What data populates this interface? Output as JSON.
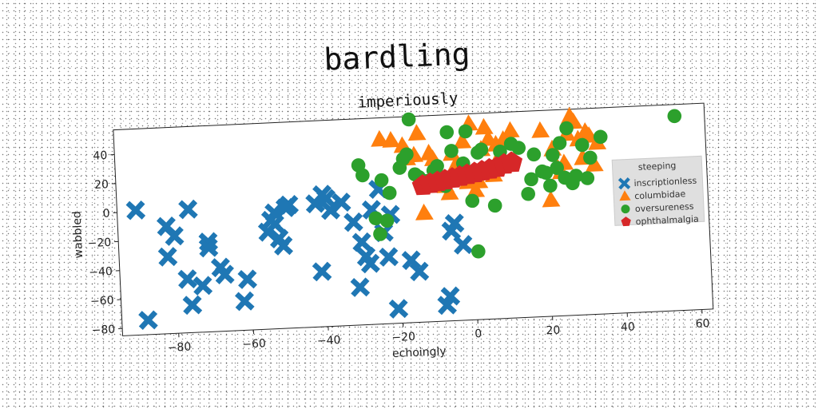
{
  "figure_title": "bardling",
  "chart_data": {
    "type": "scatter",
    "title": "imperiously",
    "xlabel": "echoingly",
    "ylabel": "wabbled",
    "xlim": [
      -95,
      63
    ],
    "ylim": [
      -85,
      57
    ],
    "xticks": [
      -80,
      -60,
      -40,
      -20,
      0,
      20,
      40,
      60
    ],
    "yticks": [
      -80,
      -60,
      -40,
      -20,
      0,
      20,
      40
    ],
    "grid": false,
    "legend": {
      "title": "steeping",
      "placement": "center-right"
    },
    "series": [
      {
        "name": "inscriptionless",
        "marker": "x-filled",
        "color": "#1f77b4",
        "points": [
          [
            -90,
            1
          ],
          [
            -88,
            -75
          ],
          [
            -82,
            -11
          ],
          [
            -82,
            -32
          ],
          [
            -80,
            -18
          ],
          [
            -77,
            -48
          ],
          [
            -76,
            0
          ],
          [
            -76,
            -66
          ],
          [
            -73,
            -53
          ],
          [
            -71,
            -23
          ],
          [
            -71,
            -27
          ],
          [
            -68,
            -41
          ],
          [
            -67,
            -46
          ],
          [
            -62,
            -65
          ],
          [
            -61,
            -50
          ],
          [
            -55,
            -18
          ],
          [
            -54,
            -10
          ],
          [
            -53,
            -5
          ],
          [
            -53,
            -13
          ],
          [
            -52,
            -23
          ],
          [
            -51,
            -28
          ],
          [
            -50,
            -2
          ],
          [
            -49,
            0
          ],
          [
            -42,
            0
          ],
          [
            -41,
            -47
          ],
          [
            -40,
            6
          ],
          [
            -39,
            3
          ],
          [
            -38,
            -5
          ],
          [
            -35,
            0
          ],
          [
            -32,
            -14
          ],
          [
            -31,
            -59
          ],
          [
            -30,
            -28
          ],
          [
            -29,
            -38
          ],
          [
            -28,
            -43
          ],
          [
            -27,
            -6
          ],
          [
            -25,
            8
          ],
          [
            -24,
            -22
          ],
          [
            -23,
            -39
          ],
          [
            -22,
            -10
          ],
          [
            -21,
            -75
          ],
          [
            -17,
            -42
          ],
          [
            -15,
            -50
          ],
          [
            -8,
            -74
          ],
          [
            -7,
            -68
          ],
          [
            -6,
            -23
          ],
          [
            -5,
            -18
          ],
          [
            -3,
            -33
          ]
        ]
      },
      {
        "name": "columbidae",
        "marker": "triangle",
        "color": "#ff7f0e",
        "points": [
          [
            -24,
            42
          ],
          [
            -21,
            41
          ],
          [
            -18,
            37
          ],
          [
            -17,
            28
          ],
          [
            -15,
            30
          ],
          [
            -14,
            45
          ],
          [
            -13,
            -10
          ],
          [
            -11,
            31
          ],
          [
            -10,
            27
          ],
          [
            -7,
            8
          ],
          [
            -6,
            3
          ],
          [
            -5,
            30
          ],
          [
            -4,
            22
          ],
          [
            -3,
            13
          ],
          [
            -2,
            38
          ],
          [
            -1,
            10
          ],
          [
            0,
            50
          ],
          [
            1,
            4
          ],
          [
            2,
            10
          ],
          [
            3,
            32
          ],
          [
            4,
            47
          ],
          [
            5,
            39
          ],
          [
            6,
            14
          ],
          [
            7,
            35
          ],
          [
            8,
            28
          ],
          [
            9,
            38
          ],
          [
            11,
            44
          ],
          [
            19,
            43
          ],
          [
            21,
            -5
          ],
          [
            22,
            30
          ],
          [
            23,
            18
          ],
          [
            24,
            14
          ],
          [
            25,
            20
          ],
          [
            26,
            40
          ],
          [
            27,
            52
          ],
          [
            28,
            48
          ],
          [
            29,
            36
          ],
          [
            30,
            23
          ],
          [
            31,
            41
          ],
          [
            32,
            38
          ],
          [
            33,
            18
          ],
          [
            34,
            33
          ]
        ]
      },
      {
        "name": "oversureness",
        "marker": "circle",
        "color": "#2ca02c",
        "points": [
          [
            -30,
            25
          ],
          [
            -29,
            18
          ],
          [
            -26,
            -12
          ],
          [
            -25,
            -23
          ],
          [
            -24,
            14
          ],
          [
            -23,
            -14
          ],
          [
            -22,
            5
          ],
          [
            -19,
            22
          ],
          [
            -18,
            28
          ],
          [
            -17,
            31
          ],
          [
            -16,
            55
          ],
          [
            -15,
            17
          ],
          [
            -14,
            15
          ],
          [
            -12,
            12
          ],
          [
            -10,
            19
          ],
          [
            -9,
            22
          ],
          [
            -8,
            14
          ],
          [
            -7,
            8
          ],
          [
            -6,
            45
          ],
          [
            -5,
            32
          ],
          [
            -2,
            23
          ],
          [
            -1,
            45
          ],
          [
            0,
            -3
          ],
          [
            1,
            -38
          ],
          [
            2,
            30
          ],
          [
            3,
            32
          ],
          [
            4,
            17
          ],
          [
            6,
            -7
          ],
          [
            8,
            30
          ],
          [
            11,
            35
          ],
          [
            13,
            32
          ],
          [
            15,
            0
          ],
          [
            16,
            10
          ],
          [
            17,
            27
          ],
          [
            19,
            15
          ],
          [
            20,
            14
          ],
          [
            21,
            5
          ],
          [
            22,
            26
          ],
          [
            23,
            17
          ],
          [
            24,
            34
          ],
          [
            25,
            10
          ],
          [
            26,
            44
          ],
          [
            27,
            6
          ],
          [
            28,
            11
          ],
          [
            30,
            32
          ],
          [
            31,
            9
          ],
          [
            32,
            23
          ],
          [
            35,
            37
          ],
          [
            55,
            49
          ]
        ]
      },
      {
        "name": "ophthalmalgia",
        "marker": "pentagon",
        "color": "#d62728",
        "points": [
          [
            -13,
            9
          ],
          [
            -11,
            10
          ],
          [
            -9,
            11
          ],
          [
            -7,
            12
          ],
          [
            -5,
            13
          ],
          [
            -3,
            14
          ],
          [
            -1,
            15
          ],
          [
            1,
            16
          ],
          [
            3,
            17
          ],
          [
            5,
            18
          ],
          [
            7,
            19
          ],
          [
            9,
            21
          ],
          [
            11,
            22
          ]
        ]
      }
    ]
  }
}
